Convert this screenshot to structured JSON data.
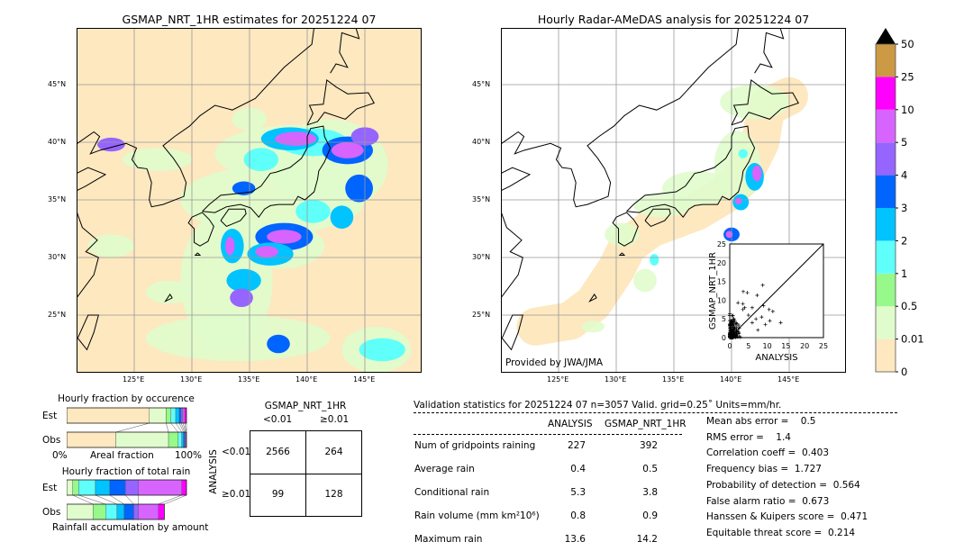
{
  "left_map": {
    "title": "GSMAP_NRT_1HR estimates for 20251224 07",
    "lon_ticks": [
      "125°E",
      "130°E",
      "135°E",
      "140°E",
      "145°E"
    ],
    "lat_ticks": [
      "45°N",
      "40°N",
      "35°N",
      "30°N",
      "25°N"
    ],
    "background_color": "#fde8c0"
  },
  "right_map": {
    "title": "Hourly Radar-AMeDAS analysis for 20251224 07",
    "lon_ticks": [
      "125°E",
      "130°E",
      "135°E",
      "140°E",
      "145°E"
    ],
    "lat_ticks": [
      "45°N",
      "40°N",
      "35°N",
      "30°N",
      "25°N"
    ],
    "credit": "Provided by JWA/JMA"
  },
  "scatter": {
    "xlabel": "ANALYSIS",
    "ylabel": "GSMAP_NRT_1HR",
    "ticks": [
      "0",
      "5",
      "10",
      "15",
      "20",
      "25"
    ],
    "range": [
      0,
      25
    ]
  },
  "colorbar": {
    "labels": [
      "0",
      "0.01",
      "0.5",
      "1",
      "2",
      "3",
      "4",
      "5",
      "10",
      "25",
      "50"
    ],
    "colors": [
      "#fde8c0",
      "#e0fccc",
      "#96f98a",
      "#5ffffa",
      "#00c3ff",
      "#0064ff",
      "#9664ff",
      "#d864ff",
      "#ff00ff",
      "#cc9944"
    ],
    "extend_color": "#000000"
  },
  "occurrence": {
    "title": "Hourly fraction by occurence",
    "est_label": "Est",
    "obs_label": "Obs",
    "axis_left": "0%",
    "axis_mid": "Areal fraction",
    "axis_right": "100%",
    "est_cum_percent": [
      69,
      83,
      87,
      91,
      94,
      95.5,
      97,
      98.5,
      100
    ],
    "obs_cum_percent": [
      41,
      85,
      93,
      96,
      97.5,
      98.5,
      99.3,
      99.8,
      100
    ]
  },
  "total_rain": {
    "title": "Hourly fraction of total rain",
    "est_label": "Est",
    "obs_label": "Obs",
    "footer": "Rainfall accumulation by amount",
    "est_cum_percent": [
      0,
      5,
      10,
      24,
      36,
      49,
      60,
      96,
      100
    ],
    "obs_cum_percent": [
      0,
      22,
      32.5,
      42,
      48,
      56,
      60,
      76.5,
      81.5
    ]
  },
  "contingency": {
    "col_title": "GSMAP_NRT_1HR",
    "col_labels": [
      "<0.01",
      "≥0.01"
    ],
    "row_title": "ANALYSIS",
    "row_labels": [
      "<0.01",
      "≥0.01"
    ],
    "cells": [
      [
        "2566",
        "264"
      ],
      [
        "99",
        "128"
      ]
    ]
  },
  "stats": {
    "header": "Validation statistics for 20251224 07  n=3057 Valid. grid=0.25˚ Units=mm/hr.",
    "col_analysis": "ANALYSIS",
    "col_gsmap": "GSMAP_NRT_1HR",
    "rows": [
      {
        "label": "Num of gridpoints raining",
        "analysis": "227",
        "gsmap": "392"
      },
      {
        "label": "Average rain",
        "analysis": "0.4",
        "gsmap": "0.5"
      },
      {
        "label": "Conditional rain",
        "analysis": "5.3",
        "gsmap": "3.8"
      },
      {
        "label": "Rain volume (mm km²10⁶)",
        "analysis": "0.8",
        "gsmap": "0.9"
      },
      {
        "label": "Maximum rain",
        "analysis": "13.6",
        "gsmap": "14.2"
      }
    ],
    "scores": [
      "Mean abs error =    0.5",
      "RMS error =    1.4",
      "Correlation coeff =  0.403",
      "Frequency bias =  1.727",
      "Probability of detection =  0.564",
      "False alarm ratio =  0.673",
      "Hanssen & Kuipers score =  0.471",
      "Equitable threat score =  0.214"
    ]
  }
}
